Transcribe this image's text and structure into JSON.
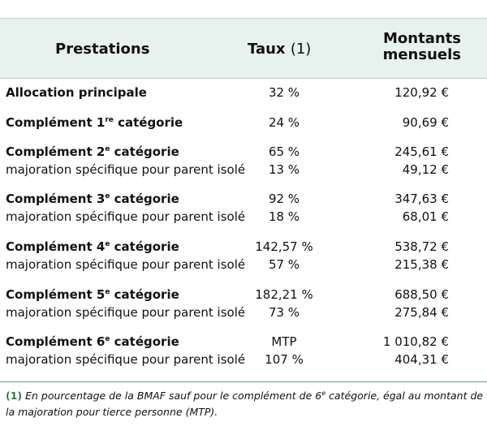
{
  "header": {
    "col_prestations": "Prestations",
    "col_taux": "Taux",
    "col_taux_note": "(1)",
    "col_montants_line1": "Montants",
    "col_montants_line2": "mensuels"
  },
  "rows": [
    {
      "label": "Allocation principale",
      "sup": "",
      "label_suffix": "",
      "bold": true,
      "taux": "32 %",
      "montant": "120,92 €"
    },
    {
      "label": "Complément 1",
      "sup": "re",
      "label_suffix": " catégorie",
      "bold": true,
      "taux": "24 %",
      "montant": "90,69 €"
    },
    {
      "label": "Complément 2",
      "sup": "e",
      "label_suffix": " catégorie",
      "bold": true,
      "taux": "65 %",
      "montant": "245,61 €"
    },
    {
      "label": "majoration spécifique pour parent isolé",
      "sup": "",
      "label_suffix": "",
      "bold": false,
      "taux": "13 %",
      "montant": "49,12 €"
    },
    {
      "label": "Complément 3",
      "sup": "e",
      "label_suffix": " catégorie",
      "bold": true,
      "taux": "92 %",
      "montant": "347,63 €"
    },
    {
      "label": "majoration spécifique pour parent isolé",
      "sup": "",
      "label_suffix": "",
      "bold": false,
      "taux": "18 %",
      "montant": "68,01 €"
    },
    {
      "label": "Complément 4",
      "sup": "e",
      "label_suffix": " catégorie",
      "bold": true,
      "taux": "142,57 %",
      "montant": "538,72 €"
    },
    {
      "label": "majoration spécifique pour parent isolé",
      "sup": "",
      "label_suffix": "",
      "bold": false,
      "taux": "57 %",
      "montant": "215,38 €"
    },
    {
      "label": "Complément 5",
      "sup": "e",
      "label_suffix": " catégorie",
      "bold": true,
      "taux": "182,21 %",
      "montant": "688,50 €"
    },
    {
      "label": "majoration spécifique pour parent isolé",
      "sup": "",
      "label_suffix": "",
      "bold": false,
      "taux": "73 %",
      "montant": "275,84 €"
    },
    {
      "label": "Complément 6",
      "sup": "e",
      "label_suffix": " catégorie",
      "bold": true,
      "taux": "MTP",
      "montant": "1 010,82 €"
    },
    {
      "label": "majoration spécifique pour parent isolé",
      "sup": "",
      "label_suffix": "",
      "bold": false,
      "taux": "107 %",
      "montant": "404,31 €"
    }
  ],
  "footnote": {
    "num": "(1)",
    "text_before_sup": " En pourcentage de la BMAF sauf pour le complément de 6",
    "sup": "e",
    "text_after_sup": " catégorie, égal au montant de la majoration pour tierce personne (MTP)."
  }
}
